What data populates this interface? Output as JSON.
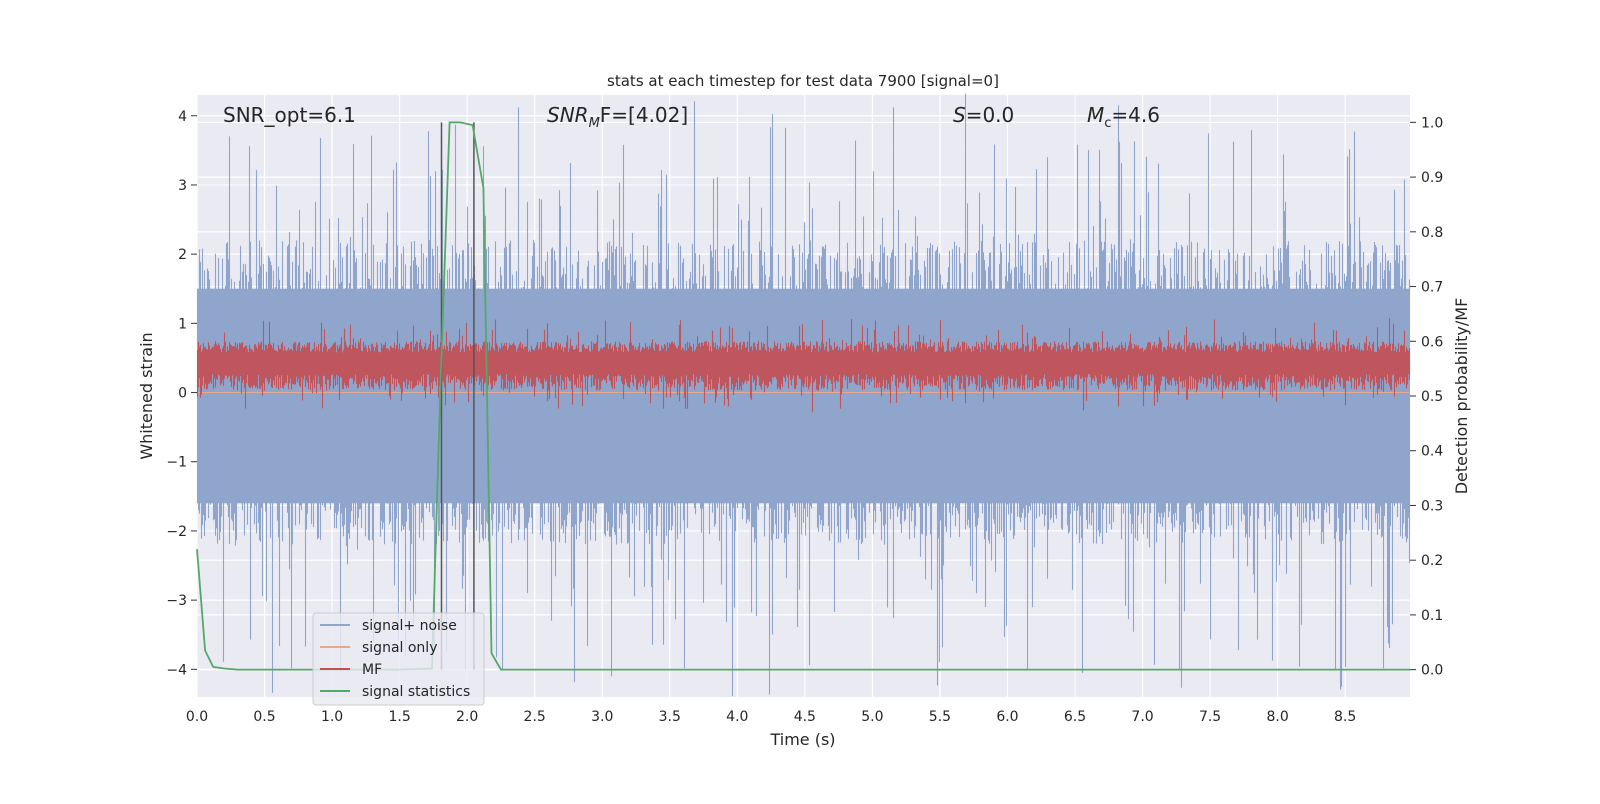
{
  "chart_data": {
    "type": "line",
    "title": "stats at each timestep for test data 7900 [signal=0]",
    "xlabel": "Time (s)",
    "ylabel": "Whitened strain",
    "ylabel_right": "Detection probability/MF",
    "xlim": [
      0.0,
      8.98
    ],
    "ylim": [
      -4.4,
      4.3
    ],
    "ylim_right": [
      -0.05,
      1.05
    ],
    "xticks": [
      "0.0",
      "0.5",
      "1.0",
      "1.5",
      "2.0",
      "2.5",
      "3.0",
      "3.5",
      "4.0",
      "4.5",
      "5.0",
      "5.5",
      "6.0",
      "6.5",
      "7.0",
      "7.5",
      "8.0",
      "8.5"
    ],
    "yticks": [
      "−4",
      "−3",
      "−2",
      "−1",
      "0",
      "1",
      "2",
      "3",
      "4"
    ],
    "yticks_right": [
      "0.0",
      "0.1",
      "0.2",
      "0.3",
      "0.4",
      "0.5",
      "0.6",
      "0.7",
      "0.8",
      "0.9",
      "1.0"
    ],
    "grid": true,
    "legend_position": "lower-left",
    "annotations": {
      "snr_opt": "SNR_opt=6.1",
      "snr_mf_prefix": "SNR",
      "snr_mf_sub": "M",
      "snr_mf_suffix": "F=[4.02]",
      "s_sym": "S",
      "s_val": "=0.0",
      "mc_sym": "M",
      "mc_sub": "c",
      "mc_val": "=4.6"
    },
    "series": [
      {
        "name": "signal+ noise",
        "color": "#8fa5cc",
        "axis": "left",
        "kind": "noise",
        "core_range": [
          -1.6,
          1.5
        ],
        "spike_range": [
          -4.0,
          3.7
        ]
      },
      {
        "name": "signal only",
        "color": "#e8a88c",
        "axis": "left",
        "kind": "flat",
        "value": 0
      },
      {
        "name": "MF",
        "color": "#c44e52",
        "axis": "right",
        "kind": "noise",
        "core_range": [
          0.54,
          0.58
        ],
        "spike_range": [
          0.5,
          0.63
        ]
      },
      {
        "name": "signal statistics",
        "color": "#55a868",
        "axis": "right",
        "x": [
          0.0,
          0.06,
          0.12,
          0.2,
          0.3,
          0.5,
          1.0,
          1.5,
          1.74,
          1.8,
          1.87,
          1.95,
          2.04,
          2.12,
          2.18,
          2.25,
          3.0,
          5.0,
          7.0,
          8.98
        ],
        "y": [
          0.22,
          0.035,
          0.005,
          0.002,
          0.0,
          0.0,
          0.0,
          0.0,
          0.002,
          0.5,
          1.0,
          1.0,
          0.995,
          0.88,
          0.03,
          0.0,
          0.0,
          0.0,
          0.0,
          0.0
        ]
      }
    ],
    "marker_lines": {
      "x": [
        1.81,
        2.05
      ],
      "y_range_right": [
        0.0,
        1.0
      ],
      "color": "#555555"
    }
  }
}
